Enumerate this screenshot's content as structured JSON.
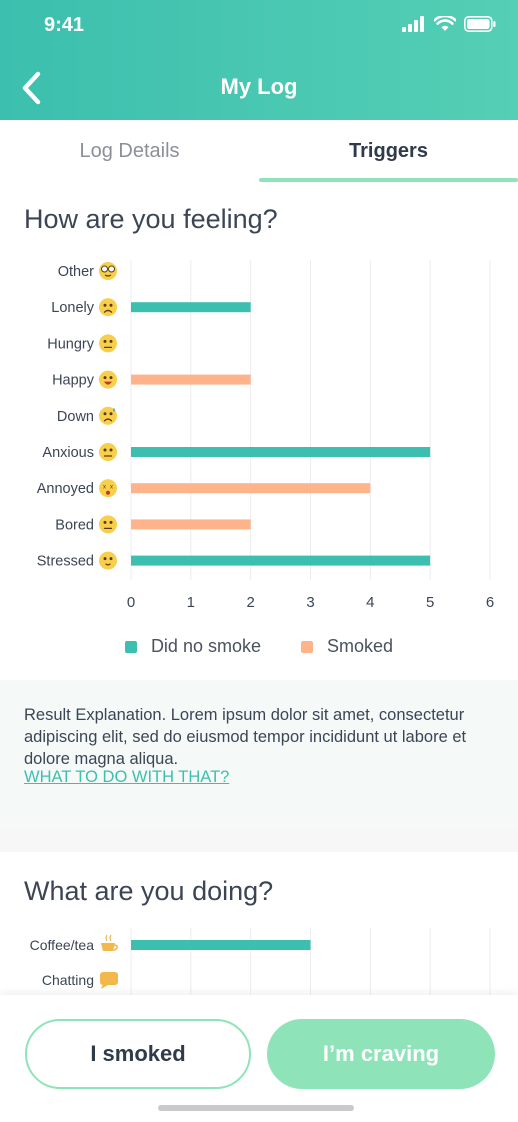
{
  "status_bar": {
    "time": "9:41"
  },
  "header": {
    "title": "My Log"
  },
  "tabs": [
    {
      "label": "Log Details",
      "active": false
    },
    {
      "label": "Triggers",
      "active": true
    }
  ],
  "feeling_section": {
    "title": "How are you feeling?",
    "chart_data": {
      "type": "bar",
      "orientation": "horizontal",
      "categories": [
        "Other",
        "Lonely",
        "Hungry",
        "Happy",
        "Down",
        "Anxious",
        "Annoyed",
        "Bored",
        "Stressed"
      ],
      "category_icons": [
        "nerd-face-icon",
        "sad-face-icon",
        "neutral-face-icon",
        "happy-face-icon",
        "sweaty-face-icon",
        "worried-face-icon",
        "dizzy-face-icon",
        "bored-face-icon",
        "stressed-face-icon"
      ],
      "series": [
        {
          "name": "Did no smoke",
          "color": "#3cbfae",
          "values": [
            0,
            2,
            0,
            0,
            0,
            5,
            0,
            0,
            5
          ]
        },
        {
          "name": "Smoked",
          "color": "#ffb38a",
          "values": [
            0,
            0,
            0,
            2,
            0,
            0,
            4,
            2,
            0
          ]
        }
      ],
      "xlim": [
        0,
        6
      ],
      "x_ticks": [
        "0",
        "1",
        "2",
        "3",
        "4",
        "5",
        "6"
      ],
      "grid": true,
      "legend_position": "bottom"
    }
  },
  "explanation": {
    "text": "Result Explanation. Lorem ipsum dolor sit amet, consectetur adipiscing elit, sed do eiusmod tempor incididunt ut labore et dolore magna aliqua.",
    "link": "WHAT TO DO WITH THAT?"
  },
  "doing_section": {
    "title": "What are you doing?",
    "chart_data": {
      "type": "bar",
      "orientation": "horizontal",
      "categories": [
        "Coffee/tea",
        "Chatting"
      ],
      "category_icons": [
        "coffee-cup-icon",
        "chat-bubble-icon"
      ],
      "series": [
        {
          "name": "Did no smoke",
          "color": "#3cbfae",
          "values": [
            3,
            0
          ]
        }
      ],
      "xlim": [
        0,
        6
      ],
      "grid": true
    }
  },
  "actions": {
    "smoked_label": "I smoked",
    "craving_label": "I’m craving"
  }
}
